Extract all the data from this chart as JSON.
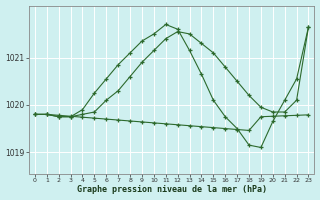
{
  "title": "Graphe pression niveau de la mer (hPa)",
  "bg_color": "#cff0f0",
  "grid_color": "#ffffff",
  "line_color": "#2d6a2d",
  "line1": {
    "x": [
      0,
      1,
      2,
      3,
      4,
      5,
      6,
      7,
      8,
      9,
      10,
      11,
      12,
      13,
      14,
      15,
      16,
      17,
      18,
      19,
      20,
      21,
      22,
      23
    ],
    "y": [
      1019.8,
      1019.8,
      1019.75,
      1019.75,
      1019.8,
      1019.85,
      1020.1,
      1020.3,
      1020.6,
      1020.9,
      1021.15,
      1021.4,
      1021.55,
      1021.5,
      1021.3,
      1021.1,
      1020.8,
      1020.5,
      1020.2,
      1019.95,
      1019.85,
      1019.85,
      1020.1,
      1021.65
    ]
  },
  "line2": {
    "x": [
      0,
      1,
      2,
      3,
      4,
      5,
      6,
      7,
      8,
      9,
      10,
      11,
      12,
      13,
      14,
      15,
      16,
      17,
      18,
      19,
      20,
      21,
      22,
      23
    ],
    "y": [
      1019.8,
      1019.8,
      1019.75,
      1019.75,
      1019.9,
      1020.25,
      1020.55,
      1020.85,
      1021.1,
      1021.35,
      1021.5,
      1021.7,
      1021.6,
      1021.15,
      1020.65,
      1020.1,
      1019.75,
      1019.5,
      1019.15,
      1019.1,
      1019.65,
      1020.1,
      1020.55,
      1021.65
    ]
  },
  "line3": {
    "x": [
      0,
      1,
      2,
      3,
      4,
      5,
      6,
      7,
      8,
      9,
      10,
      11,
      12,
      13,
      14,
      15,
      16,
      17,
      18,
      19,
      20,
      21,
      22,
      23
    ],
    "y": [
      1019.8,
      1019.8,
      1019.78,
      1019.76,
      1019.74,
      1019.72,
      1019.7,
      1019.68,
      1019.66,
      1019.64,
      1019.62,
      1019.6,
      1019.58,
      1019.56,
      1019.54,
      1019.52,
      1019.5,
      1019.48,
      1019.46,
      1019.75,
      1019.76,
      1019.77,
      1019.78,
      1019.79
    ]
  },
  "yticks": [
    1019,
    1020,
    1021
  ],
  "xticks": [
    0,
    1,
    2,
    3,
    4,
    5,
    6,
    7,
    8,
    9,
    10,
    11,
    12,
    13,
    14,
    15,
    16,
    17,
    18,
    19,
    20,
    21,
    22,
    23
  ],
  "ylim": [
    1018.55,
    1022.1
  ],
  "xlim": [
    -0.5,
    23.5
  ]
}
